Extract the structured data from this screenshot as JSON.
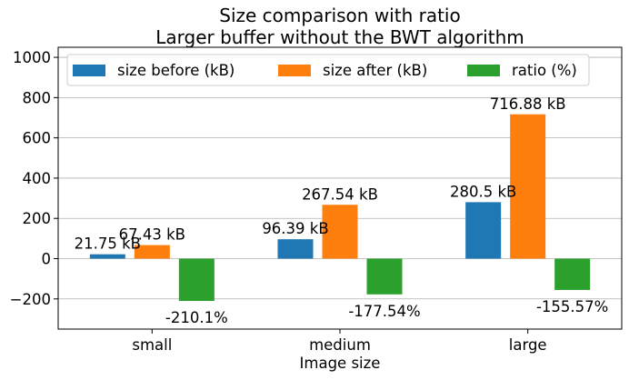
{
  "chart_data": {
    "type": "bar",
    "title": [
      "Size comparison with ratio",
      "Larger buffer without the BWT algorithm"
    ],
    "xlabel": "Image size",
    "ylabel": "",
    "categories": [
      "small",
      "medium",
      "large"
    ],
    "ylim": [
      -350,
      1050
    ],
    "yticks": [
      -200,
      0,
      200,
      400,
      600,
      800,
      1000
    ],
    "grid": "horizontal",
    "legend_position": "top",
    "series": [
      {
        "name": "size before (kB)",
        "color": "#1f77b4",
        "values": [
          21.75,
          96.39,
          280.5
        ],
        "labels": [
          "21.75 kB",
          "96.39 kB",
          "280.5 kB"
        ]
      },
      {
        "name": "size after (kB)",
        "color": "#ff7f0e",
        "values": [
          67.43,
          267.54,
          716.88
        ],
        "labels": [
          "67.43 kB",
          "267.54 kB",
          "716.88 kB"
        ]
      },
      {
        "name": "ratio (%)",
        "color": "#2ca02c",
        "values": [
          -210.1,
          -177.54,
          -155.57
        ],
        "labels": [
          "-210.1%",
          "-177.54%",
          "-155.57%"
        ]
      }
    ]
  }
}
